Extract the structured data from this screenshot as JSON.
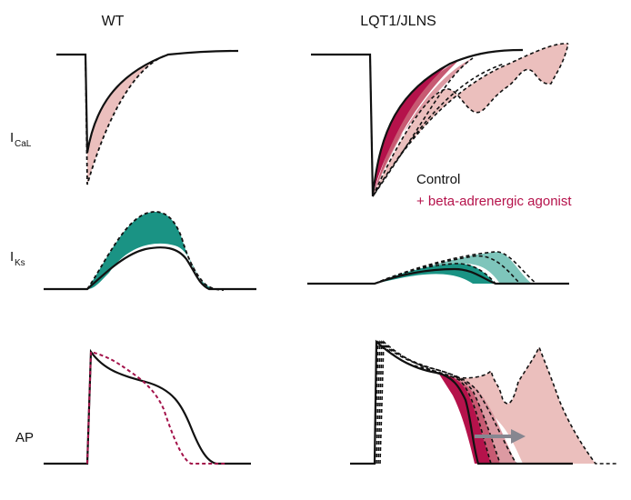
{
  "columns": {
    "wt": "WT",
    "lqt": "LQT1/JLNS"
  },
  "rows": {
    "ical": {
      "main": "I",
      "sub": "CaL"
    },
    "iks": {
      "main": "I",
      "sub": "Ks"
    },
    "ap": {
      "label": "AP"
    }
  },
  "legend": {
    "control": "Control",
    "agonist": "+ beta-adrenergic agonist"
  },
  "colors": {
    "crimson": "#b5124b",
    "rose": "#c75a72",
    "pink_mid": "#dc9aa2",
    "pink_light": "#ebbfbd",
    "teal": "#1a9384",
    "teal_light": "#7ec5bb",
    "arrow_gray": "#868690",
    "ap_dashed_wt": "#a3124a"
  }
}
